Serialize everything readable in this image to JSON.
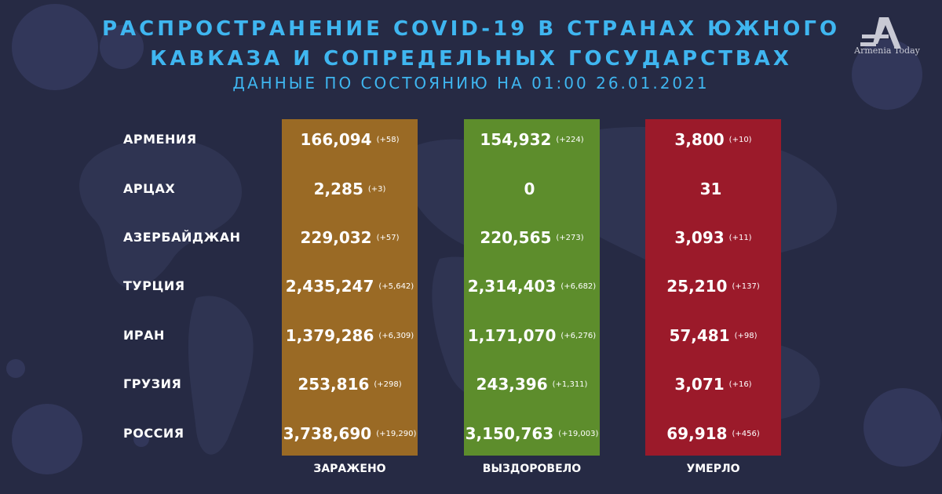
{
  "header": {
    "title_line1": "РАСПРОСТРАНЕНИЕ COVID-19 В СТРАНАХ ЮЖНОГО",
    "title_line2": "КАВКАЗА И СОПРЕДЕЛЬНЫХ ГОСУДАРСТВАХ",
    "subtitle": "ДАННЫЕ ПО СОСТОЯНИЮ НА 01:00  26.01.2021"
  },
  "logo": {
    "text": "Armenia Today"
  },
  "columns": {
    "infected": "ЗАРАЖЕНО",
    "recovered": "ВЫЗДОРОВЕЛО",
    "died": "УМЕРЛО"
  },
  "colors": {
    "infected": "#9a6a25",
    "recovered": "#5d8d2c",
    "died": "#9b1a2a",
    "title": "#3fb6f0",
    "background": "#262a44"
  },
  "rows": [
    {
      "country": "АРМЕНИЯ",
      "infected": "166,094",
      "infected_delta": "(+58)",
      "recovered": "154,932",
      "recovered_delta": "(+224)",
      "died": "3,800",
      "died_delta": "(+10)"
    },
    {
      "country": "АРЦАХ",
      "infected": "2,285",
      "infected_delta": "(+3)",
      "recovered": "0",
      "recovered_delta": "",
      "died": "31",
      "died_delta": ""
    },
    {
      "country": "АЗЕРБАЙДЖАН",
      "infected": "229,032",
      "infected_delta": "(+57)",
      "recovered": "220,565",
      "recovered_delta": "(+273)",
      "died": "3,093",
      "died_delta": "(+11)"
    },
    {
      "country": "ТУРЦИЯ",
      "infected": "2,435,247",
      "infected_delta": "(+5,642)",
      "recovered": "2,314,403",
      "recovered_delta": "(+6,682)",
      "died": "25,210",
      "died_delta": "(+137)"
    },
    {
      "country": "ИРАН",
      "infected": "1,379,286",
      "infected_delta": "(+6,309)",
      "recovered": "1,171,070",
      "recovered_delta": "(+6,276)",
      "died": "57,481",
      "died_delta": "(+98)"
    },
    {
      "country": "ГРУЗИЯ",
      "infected": "253,816",
      "infected_delta": "(+298)",
      "recovered": "243,396",
      "recovered_delta": "(+1,311)",
      "died": "3,071",
      "died_delta": "(+16)"
    },
    {
      "country": "РОССИЯ",
      "infected": "3,738,690",
      "infected_delta": "(+19,290)",
      "recovered": "3,150,763",
      "recovered_delta": "(+19,003)",
      "died": "69,918",
      "died_delta": "(+456)"
    }
  ]
}
